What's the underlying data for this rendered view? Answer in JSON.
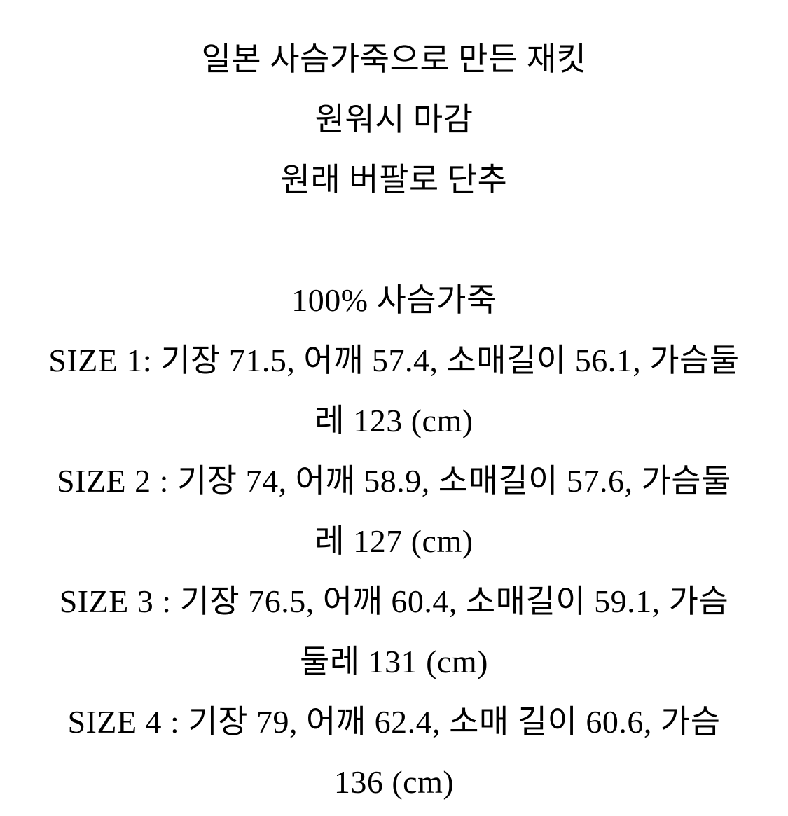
{
  "colors": {
    "background": "#ffffff",
    "text": "#000000"
  },
  "description": {
    "intro_lines": [
      "일본 사슴가죽으로 만든 재킷",
      "원워시 마감",
      "원래 버팔로 단추"
    ],
    "material": "100% 사슴가죽",
    "unit": "cm",
    "sizes": [
      {
        "label": "SIZE 1",
        "measurements": {
          "기장": "71.5",
          "어깨": "57.4",
          "소매길이": "56.1",
          "가슴둘레": "123"
        }
      },
      {
        "label": "SIZE 2",
        "measurements": {
          "기장": "74",
          "어깨": "58.9",
          "소매길이": "57.6",
          "가슴둘레": "127"
        }
      },
      {
        "label": "SIZE 3",
        "measurements": {
          "기장": "76.5",
          "어깨": "60.4",
          "소매길이": "59.1",
          "가슴둘레": "131"
        }
      },
      {
        "label": "SIZE 4",
        "measurements": {
          "기장": "79",
          "어깨": "62.4",
          "소매 길이": "60.6",
          "가슴": "136"
        }
      }
    ],
    "display_lines": [
      "일본 사슴가죽으로 만든 재킷",
      "원워시 마감",
      "원래 버팔로 단추",
      "",
      "100% 사슴가죽",
      "SIZE 1: 기장 71.5, 어깨 57.4, 소매길이 56.1, 가슴둘",
      "레 123 (cm)",
      "SIZE 2 : 기장 74, 어깨 58.9, 소매길이 57.6, 가슴둘",
      "레 127 (cm)",
      "SIZE 3 : 기장 76.5, 어깨 60.4, 소매길이 59.1, 가슴",
      "둘레 131 (cm)",
      "SIZE 4 : 기장 79, 어깨 62.4, 소매 길이 60.6, 가슴",
      "136 (cm)"
    ]
  }
}
